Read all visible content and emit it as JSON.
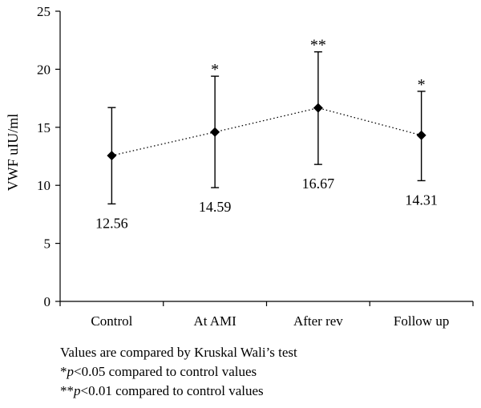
{
  "chart_data": {
    "type": "line",
    "ylabel": "VWF uIU/ml",
    "ylim": [
      0,
      25
    ],
    "yticks": [
      0,
      5,
      10,
      15,
      20,
      25
    ],
    "categories": [
      "Control",
      "At AMI",
      "After rev",
      "Follow up"
    ],
    "series": [
      {
        "values": [
          12.56,
          14.59,
          16.67,
          14.31
        ],
        "error_low": [
          8.4,
          9.8,
          11.8,
          10.4
        ],
        "error_high": [
          16.7,
          19.4,
          21.5,
          18.1
        ],
        "value_labels": [
          "12.56",
          "14.59",
          "16.67",
          "14.31"
        ],
        "significance": [
          "",
          "*",
          "**",
          "*"
        ],
        "line_style": "dotted",
        "marker": "diamond",
        "color": "#000000"
      }
    ],
    "grid": false
  },
  "notes": {
    "line1": "Values are compared by Kruskal Wali’s test",
    "line2_prefix": "*",
    "line2_p": "p",
    "line2_rest": "<0.05 compared to control values",
    "line3_prefix": "**",
    "line3_p": "p",
    "line3_rest": "<0.01 compared to control values"
  }
}
